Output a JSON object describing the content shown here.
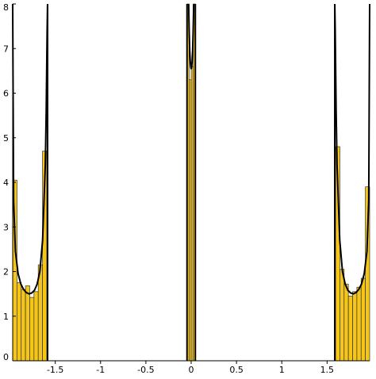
{
  "chart_data": {
    "type": "bar",
    "title": "",
    "xlabel": "",
    "ylabel": "",
    "xlim": [
      -1.97,
      1.97
    ],
    "ylim": [
      0,
      8
    ],
    "x_ticks": [
      -1.5,
      -1,
      -0.5,
      0,
      0.5,
      1,
      1.5
    ],
    "x_tick_labels": [
      "-1.5",
      "-1",
      "-0.5",
      "0",
      "0.5",
      "1",
      "1.5"
    ],
    "y_ticks": [
      0,
      1,
      2,
      3,
      4,
      5,
      6,
      7,
      8
    ],
    "y_tick_labels": [
      "0",
      "1",
      "2",
      "3",
      "4",
      "5",
      "6",
      "7",
      "8"
    ],
    "grid": false,
    "legend": "none",
    "colors": {
      "bar_fill": "#f5c518",
      "bar_edge": "#333333",
      "curve": "#000000",
      "axis": "#000000"
    },
    "histogram_bins": [
      {
        "x0": -1.97,
        "x1": -1.923,
        "value": 4.05
      },
      {
        "x0": -1.923,
        "x1": -1.876,
        "value": 1.75
      },
      {
        "x0": -1.876,
        "x1": -1.829,
        "value": 1.6
      },
      {
        "x0": -1.829,
        "x1": -1.782,
        "value": 1.68
      },
      {
        "x0": -1.782,
        "x1": -1.735,
        "value": 1.42
      },
      {
        "x0": -1.735,
        "x1": -1.688,
        "value": 1.55
      },
      {
        "x0": -1.688,
        "x1": -1.641,
        "value": 2.15
      },
      {
        "x0": -1.641,
        "x1": -1.594,
        "value": 4.7
      },
      {
        "x0": -0.046,
        "x1": -0.023,
        "value": 8.0
      },
      {
        "x0": -0.023,
        "x1": 0.0,
        "value": 6.3
      },
      {
        "x0": 0.0,
        "x1": 0.023,
        "value": 6.6
      },
      {
        "x0": 0.023,
        "x1": 0.046,
        "value": 8.0
      },
      {
        "x0": 1.594,
        "x1": 1.641,
        "value": 4.8
      },
      {
        "x0": 1.641,
        "x1": 1.688,
        "value": 2.05
      },
      {
        "x0": 1.688,
        "x1": 1.735,
        "value": 1.72
      },
      {
        "x0": 1.735,
        "x1": 1.782,
        "value": 1.45
      },
      {
        "x0": 1.782,
        "x1": 1.829,
        "value": 1.55
      },
      {
        "x0": 1.829,
        "x1": 1.876,
        "value": 1.65
      },
      {
        "x0": 1.876,
        "x1": 1.923,
        "value": 1.85
      },
      {
        "x0": 1.923,
        "x1": 1.97,
        "value": 3.9
      }
    ],
    "curve_segments": [
      {
        "x": [
          -1.97,
          -1.96,
          -1.94,
          -1.91,
          -1.88,
          -1.85,
          -1.82,
          -1.79,
          -1.76,
          -1.73,
          -1.7,
          -1.67,
          -1.64,
          -1.61,
          -1.6,
          -1.59,
          -1.585
        ],
        "y": [
          8.0,
          3.6,
          2.45,
          1.95,
          1.72,
          1.6,
          1.53,
          1.5,
          1.52,
          1.58,
          1.72,
          2.0,
          2.7,
          4.4,
          5.6,
          7.4,
          8.0
        ]
      },
      {
        "x": [
          -0.028,
          -0.022,
          -0.016,
          -0.01,
          -0.004,
          0.0,
          0.004,
          0.01,
          0.016,
          0.022,
          0.028
        ],
        "y": [
          8.0,
          7.4,
          6.95,
          6.7,
          6.58,
          6.55,
          6.58,
          6.7,
          6.95,
          7.4,
          8.0
        ]
      },
      {
        "x": [
          1.585,
          1.59,
          1.6,
          1.61,
          1.64,
          1.67,
          1.7,
          1.73,
          1.76,
          1.79,
          1.82,
          1.85,
          1.88,
          1.91,
          1.94,
          1.96,
          1.97
        ],
        "y": [
          8.0,
          7.4,
          5.6,
          4.4,
          2.7,
          2.0,
          1.72,
          1.58,
          1.52,
          1.5,
          1.53,
          1.6,
          1.72,
          1.95,
          2.45,
          3.6,
          8.0
        ]
      }
    ],
    "vertical_lines": [
      -1.585,
      -0.046,
      0.046,
      1.585
    ]
  }
}
